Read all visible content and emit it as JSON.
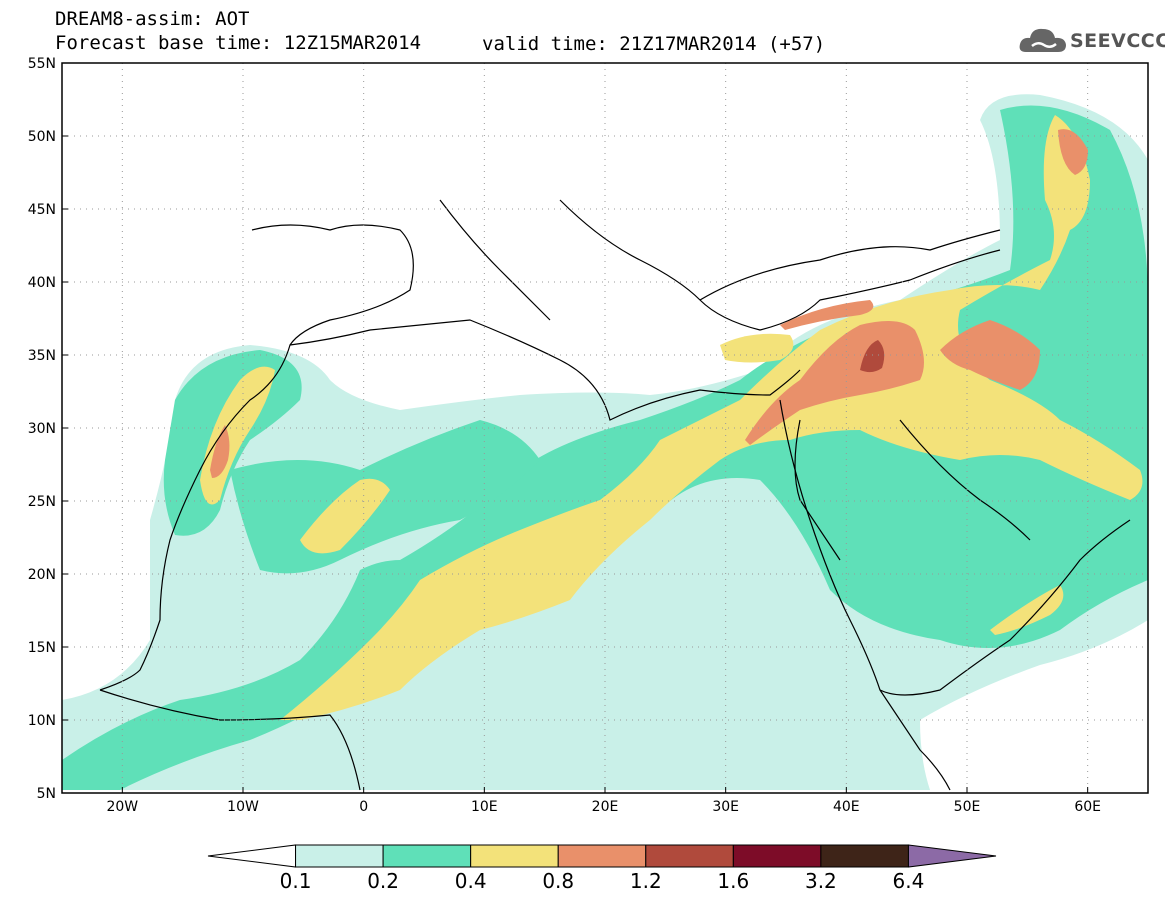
{
  "header": {
    "title": "DREAM8-assim: AOT",
    "base_time": "Forecast base time: 12Z15MAR2014",
    "valid_time": "valid time: 21Z17MAR2014 (+57)"
  },
  "logo": {
    "text": "SEEVCCC",
    "icon": "cloud-icon"
  },
  "map": {
    "lon_labels": [
      "20W",
      "10W",
      "0",
      "10E",
      "20E",
      "30E",
      "40E",
      "50E",
      "60E"
    ],
    "lon_values": [
      -20,
      -10,
      0,
      10,
      20,
      30,
      40,
      50,
      60
    ],
    "lat_labels": [
      "55N",
      "50N",
      "45N",
      "40N",
      "35N",
      "30N",
      "25N",
      "20N",
      "15N",
      "10N",
      "5N"
    ],
    "lat_values": [
      55,
      50,
      45,
      40,
      35,
      30,
      25,
      20,
      15,
      10,
      5
    ],
    "lon_range": [
      -25,
      65
    ],
    "lat_range": [
      5,
      55
    ],
    "grid": "dotted"
  },
  "colorbar": {
    "labels": [
      "0.1",
      "0.2",
      "0.4",
      "0.8",
      "1.2",
      "1.6",
      "3.2",
      "6.4"
    ],
    "colors": [
      "#ffffff",
      "#c9f0e8",
      "#5fe0b8",
      "#f3e27a",
      "#e9906a",
      "#b04a3c",
      "#7d0c28",
      "#3e2418",
      "#8c6aa6"
    ]
  }
}
